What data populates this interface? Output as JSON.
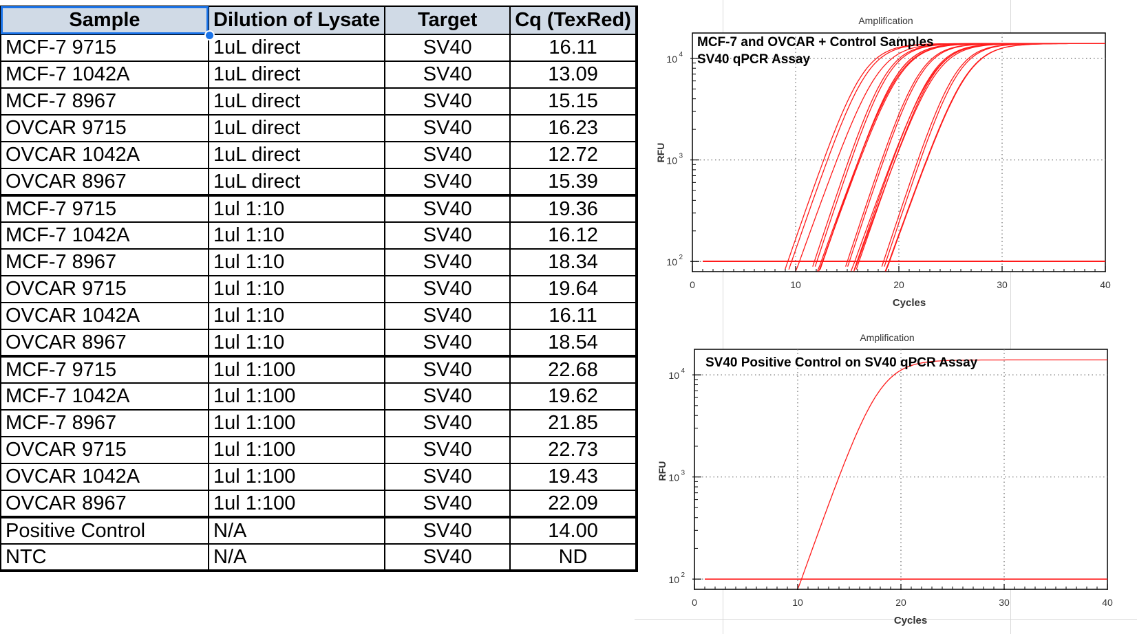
{
  "table": {
    "headers": [
      "Sample",
      "Dilution of Lysate",
      "Target",
      "Cq (TexRed)"
    ],
    "rows": [
      {
        "sample": "MCF-7 9715",
        "dilution": "1uL direct",
        "target": "SV40",
        "cq": "16.11"
      },
      {
        "sample": "MCF-7 1042A",
        "dilution": "1uL direct",
        "target": "SV40",
        "cq": "13.09"
      },
      {
        "sample": "MCF-7 8967",
        "dilution": "1uL direct",
        "target": "SV40",
        "cq": "15.15"
      },
      {
        "sample": "OVCAR 9715",
        "dilution": "1uL direct",
        "target": "SV40",
        "cq": "16.23"
      },
      {
        "sample": "OVCAR 1042A",
        "dilution": "1uL direct",
        "target": "SV40",
        "cq": "12.72"
      },
      {
        "sample": "OVCAR 8967",
        "dilution": "1uL direct",
        "target": "SV40",
        "cq": "15.39"
      },
      {
        "sample": "MCF-7 9715",
        "dilution": "1ul 1:10",
        "target": "SV40",
        "cq": "19.36"
      },
      {
        "sample": "MCF-7 1042A",
        "dilution": "1ul 1:10",
        "target": "SV40",
        "cq": "16.12"
      },
      {
        "sample": "MCF-7 8967",
        "dilution": "1ul 1:10",
        "target": "SV40",
        "cq": "18.34"
      },
      {
        "sample": "OVCAR 9715",
        "dilution": "1ul 1:10",
        "target": "SV40",
        "cq": "19.64"
      },
      {
        "sample": "OVCAR 1042A",
        "dilution": "1ul 1:10",
        "target": "SV40",
        "cq": "16.11"
      },
      {
        "sample": "OVCAR 8967",
        "dilution": "1ul 1:10",
        "target": "SV40",
        "cq": "18.54"
      },
      {
        "sample": "MCF-7 9715",
        "dilution": "1ul 1:100",
        "target": "SV40",
        "cq": "22.68"
      },
      {
        "sample": "MCF-7 1042A",
        "dilution": "1ul 1:100",
        "target": "SV40",
        "cq": "19.62"
      },
      {
        "sample": "MCF-7 8967",
        "dilution": "1ul 1:100",
        "target": "SV40",
        "cq": "21.85"
      },
      {
        "sample": "OVCAR 9715",
        "dilution": "1ul 1:100",
        "target": "SV40",
        "cq": "22.73"
      },
      {
        "sample": "OVCAR 1042A",
        "dilution": "1ul 1:100",
        "target": "SV40",
        "cq": "19.43"
      },
      {
        "sample": "OVCAR 8967",
        "dilution": "1ul 1:100",
        "target": "SV40",
        "cq": "22.09"
      },
      {
        "sample": "Positive Control",
        "dilution": "N/A",
        "target": "SV40",
        "cq": "14.00"
      },
      {
        "sample": "NTC",
        "dilution": "N/A",
        "target": "SV40",
        "cq": "ND"
      }
    ]
  },
  "colors": {
    "curve": "#ff1a1a",
    "header_bg": "#d0dae6",
    "selection": "#1a73e8"
  },
  "chart_data": [
    {
      "type": "line",
      "title": "Amplification",
      "annotation": [
        "MCF-7 and OVCAR + Control Samples",
        "SV40 qPCR Assay"
      ],
      "xlabel": "Cycles",
      "ylabel": "RFU",
      "x_ticks": [
        "0",
        "10",
        "20",
        "30",
        "40"
      ],
      "y_ticks": [
        "10^2",
        "10^3",
        "10^4"
      ],
      "xlim": [
        0,
        40
      ],
      "ylim_log10": [
        1.9,
        4.25
      ],
      "log_scale_y": true,
      "grid": true,
      "plateau_rfu": 14000,
      "baseline_rfu": 100,
      "series_cq": [
        16.11,
        13.09,
        15.15,
        16.23,
        12.72,
        15.39,
        19.36,
        16.12,
        18.34,
        19.64,
        16.11,
        18.54,
        22.68,
        19.62,
        21.85,
        22.73,
        19.43,
        22.09,
        14.0
      ]
    },
    {
      "type": "line",
      "title": "Amplification",
      "annotation": [
        "SV40 Positive Control on SV40 qPCR Assay"
      ],
      "xlabel": "Cycles",
      "ylabel": "RFU",
      "x_ticks": [
        "0",
        "10",
        "20",
        "30",
        "40"
      ],
      "y_ticks": [
        "10^2",
        "10^3",
        "10^4"
      ],
      "xlim": [
        0,
        40
      ],
      "ylim_log10": [
        1.9,
        4.25
      ],
      "log_scale_y": true,
      "grid": true,
      "plateau_rfu": 14000,
      "baseline_rfu": 100,
      "series_cq": [
        14.0
      ]
    }
  ]
}
